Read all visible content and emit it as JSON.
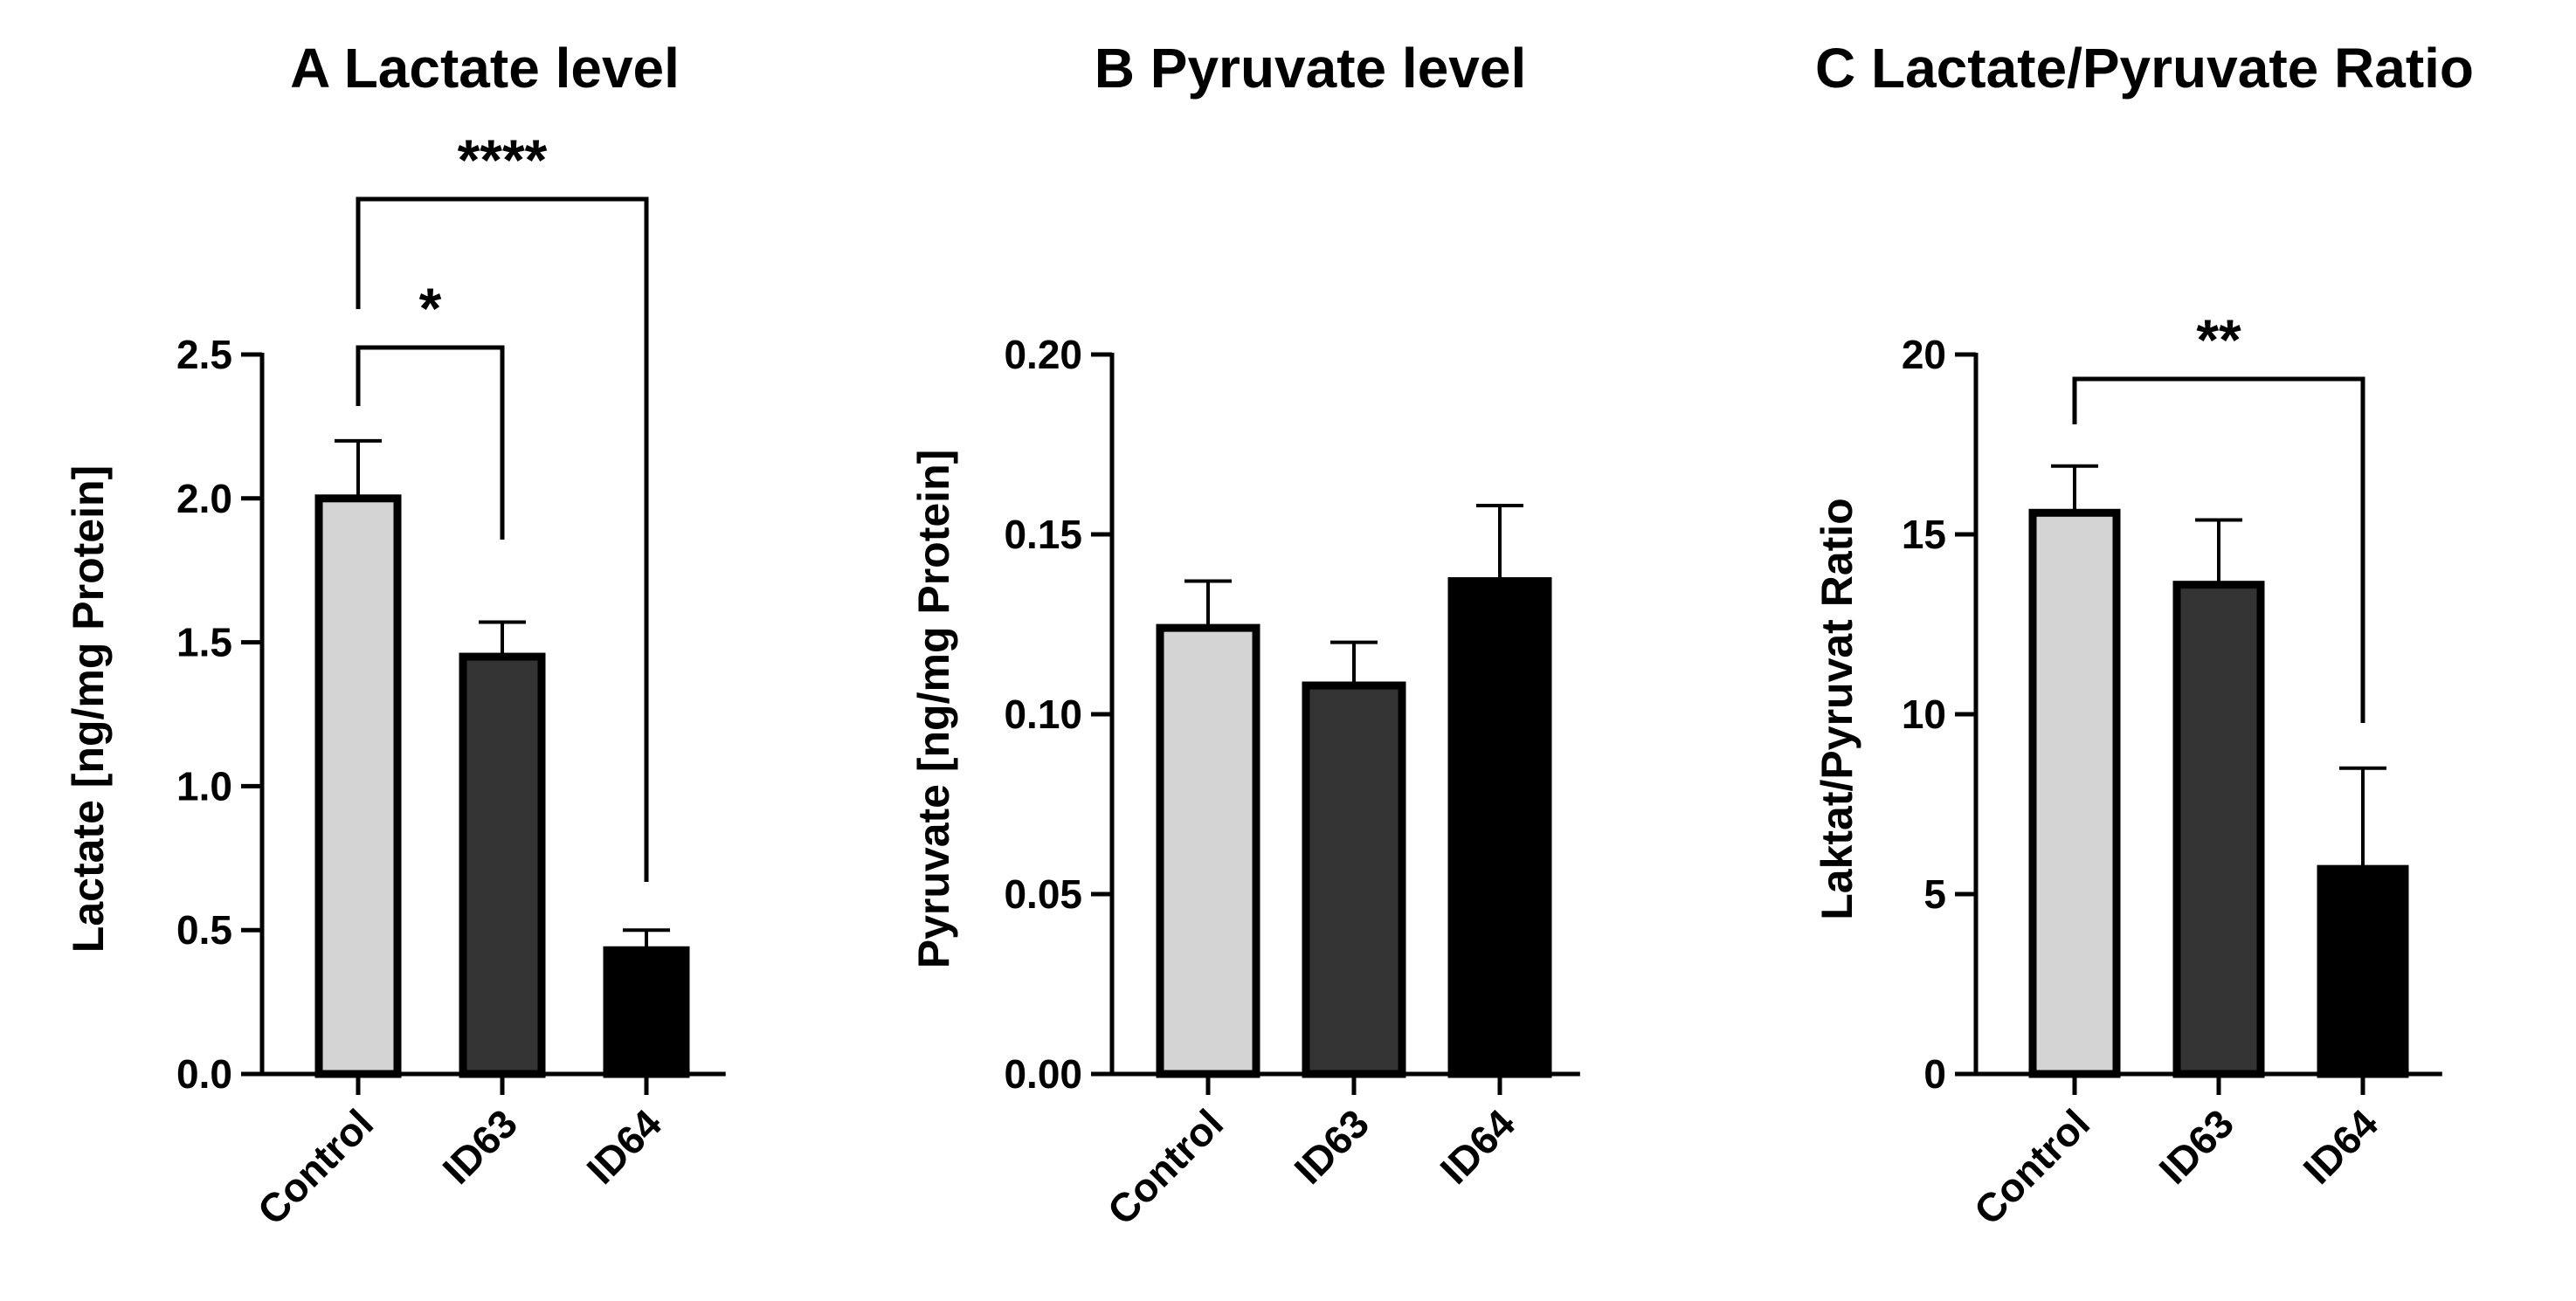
{
  "chart_data": [
    {
      "type": "bar",
      "title": "A Lactate level",
      "xlabel": "",
      "ylabel": "Lactate [ng/mg Protein]",
      "categories": [
        "Control",
        "ID63",
        "ID64"
      ],
      "values": [
        2.0,
        1.45,
        0.43
      ],
      "errors": [
        0.2,
        0.12,
        0.07
      ],
      "ylim": [
        0,
        2.5
      ],
      "yticks": [
        0.0,
        0.5,
        1.0,
        1.5,
        2.0,
        2.5
      ],
      "ytick_labels": [
        "0.0",
        "0.5",
        "1.0",
        "1.5",
        "2.0",
        "2.5"
      ],
      "bar_colors": [
        "#d4d4d4",
        "#333333",
        "#000000"
      ],
      "grid": false,
      "significance": [
        {
          "from": "Control",
          "to": "ID63",
          "label": "*"
        },
        {
          "from": "Control",
          "to": "ID64",
          "label": "****"
        }
      ]
    },
    {
      "type": "bar",
      "title": "B Pyruvate level",
      "xlabel": "",
      "ylabel": "Pyruvate [ng/mg Protein]",
      "categories": [
        "Control",
        "ID63",
        "ID64"
      ],
      "values": [
        0.124,
        0.108,
        0.137
      ],
      "errors": [
        0.013,
        0.012,
        0.021
      ],
      "ylim": [
        0,
        0.2
      ],
      "yticks": [
        0.0,
        0.05,
        0.1,
        0.15,
        0.2
      ],
      "ytick_labels": [
        "0.00",
        "0.05",
        "0.10",
        "0.15",
        "0.20"
      ],
      "bar_colors": [
        "#d4d4d4",
        "#333333",
        "#000000"
      ],
      "grid": false,
      "significance": []
    },
    {
      "type": "bar",
      "title": "C Lactate/Pyruvate Ratio",
      "xlabel": "",
      "ylabel": "Laktat/Pyruvat Ratio",
      "categories": [
        "Control",
        "ID63",
        "ID64"
      ],
      "values": [
        15.6,
        13.6,
        5.7
      ],
      "errors": [
        1.3,
        1.8,
        2.8
      ],
      "ylim": [
        0,
        20
      ],
      "yticks": [
        0,
        5,
        10,
        15,
        20
      ],
      "ytick_labels": [
        "0",
        "5",
        "10",
        "15",
        "20"
      ],
      "bar_colors": [
        "#d4d4d4",
        "#333333",
        "#000000"
      ],
      "grid": false,
      "significance": [
        {
          "from": "Control",
          "to": "ID64",
          "label": "**"
        }
      ]
    }
  ]
}
